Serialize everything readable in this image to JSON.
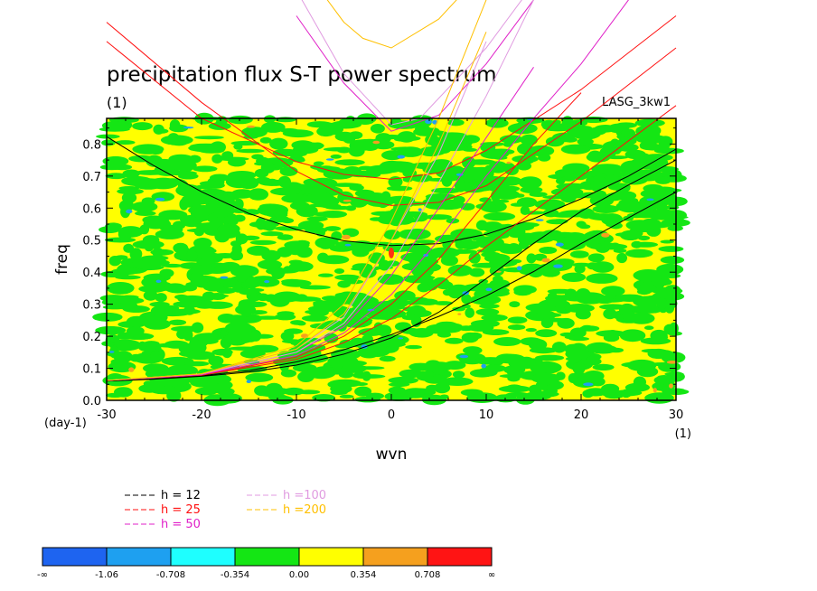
{
  "chart_data": {
    "type": "heatmap",
    "title": "precipitation flux S-T power spectrum",
    "title_units": "(1)",
    "source_label": "LASG_3kw1",
    "xlabel": "wvn",
    "ylabel": "freq",
    "x_units": "(1)",
    "y_units": "(day-1)",
    "xlim": [
      -30,
      30
    ],
    "ylim": [
      0.0,
      0.88
    ],
    "x_ticks": [
      -30,
      -20,
      -10,
      0,
      10,
      20,
      30
    ],
    "y_ticks": [
      0.0,
      0.1,
      0.2,
      0.3,
      0.4,
      0.5,
      0.6,
      0.7,
      0.8
    ],
    "x_tick_labels": [
      "-30",
      "-20",
      "-10",
      "0",
      "10",
      "20",
      "30"
    ],
    "y_tick_labels": [
      "0.0",
      "0.1",
      "0.2",
      "0.3",
      "0.4",
      "0.5",
      "0.6",
      "0.7",
      "0.8"
    ],
    "colorbar": {
      "labels": [
        "-∞",
        "-1.06",
        "-0.708",
        "-0.354",
        "0.00",
        "0.354",
        "0.708",
        "∞"
      ],
      "colors": [
        "#1e64f0",
        "#1ea0f0",
        "#1effff",
        "#14e614",
        "#ffff00",
        "#f5a01e",
        "#ff1414"
      ]
    },
    "field_colors": {
      "background": "#ffff00",
      "patch": "#14e614",
      "low": "#1ea0f0",
      "high": "#f5a01e",
      "peak": "#ff3014"
    },
    "series": [
      {
        "name": "h = 12",
        "color": "#000000",
        "branches": [
          [
            [
              -30,
              0.823
            ],
            [
              -25,
              0.732
            ],
            [
              -20,
              0.651
            ],
            [
              -15,
              0.583
            ],
            [
              -10,
              0.533
            ],
            [
              -5,
              0.498
            ],
            [
              0,
              0.483
            ],
            [
              5,
              0.489
            ],
            [
              10,
              0.518
            ],
            [
              15,
              0.567
            ],
            [
              20,
              0.629
            ],
            [
              25,
              0.7
            ],
            [
              30,
              0.784
            ]
          ],
          [
            [
              -30,
              0.062
            ],
            [
              -25,
              0.067
            ],
            [
              -20,
              0.077
            ],
            [
              -15,
              0.093
            ],
            [
              -10,
              0.12
            ],
            [
              -5,
              0.158
            ],
            [
              0,
              0.205
            ],
            [
              5,
              0.262
            ],
            [
              10,
              0.326
            ],
            [
              15,
              0.402
            ],
            [
              20,
              0.489
            ],
            [
              25,
              0.57
            ],
            [
              30,
              0.65
            ]
          ],
          [
            [
              -30,
              0.06
            ],
            [
              -25,
              0.066
            ],
            [
              -20,
              0.075
            ],
            [
              -15,
              0.088
            ],
            [
              -10,
              0.11
            ],
            [
              -5,
              0.144
            ],
            [
              0,
              0.195
            ],
            [
              5,
              0.275
            ],
            [
              10,
              0.38
            ],
            [
              15,
              0.49
            ],
            [
              20,
              0.59
            ],
            [
              25,
              0.672
            ],
            [
              30,
              0.75
            ]
          ]
        ]
      },
      {
        "name": "h = 25",
        "color": "#ff1010",
        "branches": [
          [
            [
              -30,
              1.18
            ],
            [
              -20,
              0.93
            ],
            [
              -10,
              0.715
            ],
            [
              -5,
              0.64
            ],
            [
              0,
              0.608
            ],
            [
              5,
              0.618
            ],
            [
              10,
              0.67
            ],
            [
              20,
              0.87
            ],
            [
              30,
              1.1
            ]
          ],
          [
            [
              -30,
              1.12
            ],
            [
              -20,
              0.88
            ],
            [
              -10,
              0.745
            ],
            [
              -5,
              0.705
            ],
            [
              0,
              0.69
            ],
            [
              5,
              0.71
            ],
            [
              10,
              0.78
            ],
            [
              20,
              0.97
            ],
            [
              30,
              1.2
            ]
          ],
          [
            [
              -30,
              0.062
            ],
            [
              -20,
              0.078
            ],
            [
              -10,
              0.128
            ],
            [
              -5,
              0.18
            ],
            [
              0,
              0.255
            ],
            [
              5,
              0.36
            ],
            [
              10,
              0.48
            ],
            [
              15,
              0.59
            ],
            [
              20,
              0.7
            ],
            [
              25,
              0.81
            ],
            [
              30,
              0.92
            ]
          ],
          [
            [
              -30,
              0.062
            ],
            [
              -20,
              0.079
            ],
            [
              -10,
              0.135
            ],
            [
              -5,
              0.2
            ],
            [
              0,
              0.3
            ],
            [
              5,
              0.44
            ],
            [
              10,
              0.62
            ],
            [
              15,
              0.8
            ],
            [
              20,
              0.96
            ]
          ]
        ]
      },
      {
        "name": "h = 50",
        "color": "#e020c8",
        "branches": [
          [
            [
              -10,
              1.2
            ],
            [
              -5,
              0.99
            ],
            [
              0,
              0.84
            ],
            [
              5,
              0.89
            ],
            [
              10,
              1.05
            ],
            [
              15,
              1.25
            ]
          ],
          [
            [
              -30,
              0.062
            ],
            [
              -20,
              0.08
            ],
            [
              -10,
              0.14
            ],
            [
              -5,
              0.21
            ],
            [
              0,
              0.33
            ],
            [
              5,
              0.5
            ],
            [
              10,
              0.7
            ],
            [
              15,
              0.88
            ],
            [
              20,
              1.05
            ],
            [
              25,
              1.25
            ]
          ],
          [
            [
              -30,
              0.062
            ],
            [
              -20,
              0.08
            ],
            [
              -10,
              0.15
            ],
            [
              -5,
              0.23
            ],
            [
              0,
              0.39
            ],
            [
              5,
              0.6
            ],
            [
              10,
              0.82
            ],
            [
              15,
              1.04
            ]
          ]
        ]
      },
      {
        "name": "h =100",
        "color": "#e09be0",
        "branches": [
          [
            [
              -10,
              1.28
            ],
            [
              -5,
              1.02
            ],
            [
              0,
              0.86
            ],
            [
              3,
              0.88
            ],
            [
              10,
              1.1
            ],
            [
              15,
              1.3
            ]
          ],
          [
            [
              -30,
              0.062
            ],
            [
              -20,
              0.082
            ],
            [
              -10,
              0.15
            ],
            [
              -5,
              0.24
            ],
            [
              0,
              0.42
            ],
            [
              5,
              0.68
            ],
            [
              10,
              0.95
            ],
            [
              15,
              1.25
            ]
          ],
          [
            [
              -30,
              0.062
            ],
            [
              -20,
              0.082
            ],
            [
              -10,
              0.16
            ],
            [
              -5,
              0.26
            ],
            [
              0,
              0.5
            ],
            [
              5,
              0.77
            ],
            [
              10,
              1.12
            ]
          ]
        ]
      },
      {
        "name": "h =200",
        "color": "#ffc000",
        "branches": [
          [
            [
              -8,
              1.3
            ],
            [
              -5,
              1.18
            ],
            [
              -3,
              1.13
            ],
            [
              0,
              1.1
            ],
            [
              5,
              1.19
            ],
            [
              10,
              1.35
            ]
          ],
          [
            [
              -30,
              0.062
            ],
            [
              -20,
              0.083
            ],
            [
              -10,
              0.16
            ],
            [
              -5,
              0.27
            ],
            [
              0,
              0.5
            ],
            [
              5,
              0.8
            ],
            [
              10,
              1.15
            ]
          ],
          [
            [
              -30,
              0.062
            ],
            [
              -20,
              0.083
            ],
            [
              -10,
              0.17
            ],
            [
              -5,
              0.3
            ],
            [
              0,
              0.56
            ],
            [
              5,
              0.88
            ],
            [
              10,
              1.25
            ]
          ]
        ]
      }
    ]
  }
}
